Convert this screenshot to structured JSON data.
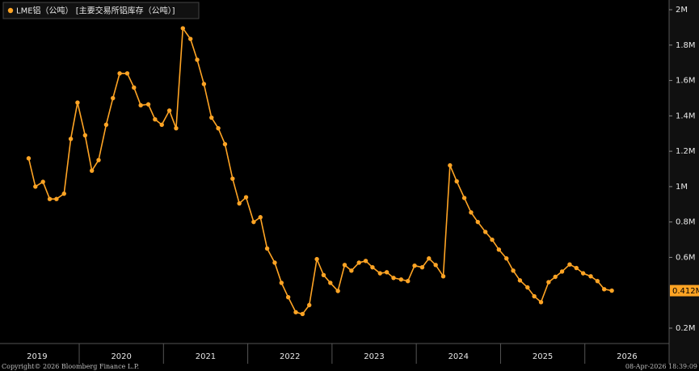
{
  "chart_data": {
    "type": "line",
    "title": "LME铝（公吨） [主要交易所铝库存（公吨）]",
    "footer_left": "Copyright© 2026 Bloomberg Finance L.P.",
    "footer_right": "08-Apr-2026 18:39:09",
    "x": [
      2019.4,
      2019.48,
      2019.57,
      2019.65,
      2019.73,
      2019.82,
      2019.9,
      2019.98,
      2020.07,
      2020.15,
      2020.23,
      2020.32,
      2020.4,
      2020.48,
      2020.57,
      2020.65,
      2020.73,
      2020.82,
      2020.9,
      2020.98,
      2021.07,
      2021.15,
      2021.23,
      2021.32,
      2021.4,
      2021.48,
      2021.57,
      2021.65,
      2021.73,
      2021.82,
      2021.9,
      2021.98,
      2022.07,
      2022.15,
      2022.23,
      2022.32,
      2022.4,
      2022.48,
      2022.57,
      2022.65,
      2022.73,
      2022.82,
      2022.9,
      2022.98,
      2023.07,
      2023.15,
      2023.23,
      2023.32,
      2023.4,
      2023.48,
      2023.57,
      2023.65,
      2023.73,
      2023.82,
      2023.9,
      2023.98,
      2024.07,
      2024.15,
      2024.23,
      2024.32,
      2024.4,
      2024.48,
      2024.57,
      2024.65,
      2024.73,
      2024.82,
      2024.9,
      2024.98,
      2025.07,
      2025.15,
      2025.23,
      2025.32,
      2025.4,
      2025.48,
      2025.57,
      2025.65,
      2025.73,
      2025.82,
      2025.9,
      2025.98,
      2026.07,
      2026.15,
      2026.23,
      2026.32
    ],
    "series": [
      {
        "name": "LME铝（公吨） [主要交易所铝库存（公吨）]",
        "color": "#ffa424",
        "values": [
          1160000,
          1000000,
          1027000,
          930000,
          930000,
          960000,
          1270000,
          1475000,
          1290000,
          1090000,
          1150000,
          1350000,
          1500000,
          1640000,
          1640000,
          1560000,
          1460000,
          1465000,
          1380000,
          1350000,
          1430000,
          1330000,
          1895000,
          1835000,
          1717000,
          1580000,
          1390000,
          1330000,
          1240000,
          1045000,
          905000,
          940000,
          800000,
          827000,
          650000,
          570000,
          456000,
          375000,
          290000,
          280000,
          330000,
          590000,
          500000,
          456000,
          410000,
          557000,
          525000,
          570000,
          580000,
          544000,
          510000,
          516000,
          484000,
          475000,
          466000,
          553000,
          544000,
          594000,
          557000,
          493000,
          1120000,
          1030000,
          936000,
          854000,
          800000,
          744000,
          700000,
          644000,
          594000,
          525000,
          470000,
          430000,
          380000,
          347000,
          460000,
          490000,
          520000,
          560000,
          540000,
          510000,
          493000,
          466000,
          420000,
          412000
        ],
        "value_labels": [
          null,
          null,
          null,
          null,
          null,
          null,
          null,
          null,
          null,
          null,
          null,
          null,
          null,
          null,
          null,
          null,
          null,
          null,
          null,
          null,
          null,
          null,
          null,
          null,
          null,
          null,
          null,
          null,
          null,
          null,
          null,
          null,
          null,
          null,
          null,
          null,
          null,
          null,
          null,
          null,
          null,
          null,
          null,
          null,
          null,
          null,
          null,
          null,
          null,
          null,
          null,
          null,
          null,
          null,
          null,
          null,
          null,
          null,
          null,
          null,
          null,
          null,
          null,
          null,
          null,
          null,
          null,
          null,
          null,
          null,
          null,
          null,
          null,
          null,
          null,
          null,
          null,
          null,
          null,
          null,
          null,
          null,
          null,
          "0.412M"
        ]
      }
    ],
    "xlim": [
      2019.06,
      2027.0
    ],
    "xticks": [
      {
        "value": 2019.5,
        "label": "2019"
      },
      {
        "value": 2020.5,
        "label": "2020"
      },
      {
        "value": 2021.5,
        "label": "2021"
      },
      {
        "value": 2022.5,
        "label": "2022"
      },
      {
        "value": 2023.5,
        "label": "2023"
      },
      {
        "value": 2024.5,
        "label": "2024"
      },
      {
        "value": 2025.5,
        "label": "2025"
      },
      {
        "value": 2026.5,
        "label": "2026"
      }
    ],
    "ylim": [
      113000,
      2055000
    ],
    "yticks": [
      {
        "value": 200000,
        "label": "0.2M"
      },
      {
        "value": 600000,
        "label": "0.6M"
      },
      {
        "value": 800000,
        "label": "0.8M"
      },
      {
        "value": 1000000,
        "label": "1M"
      },
      {
        "value": 1200000,
        "label": "1.2M"
      },
      {
        "value": 1400000,
        "label": "1.4M"
      },
      {
        "value": 1600000,
        "label": "1.6M"
      },
      {
        "value": 1800000,
        "label": "1.8M"
      },
      {
        "value": 2000000,
        "label": "2M"
      }
    ],
    "grid": false
  }
}
